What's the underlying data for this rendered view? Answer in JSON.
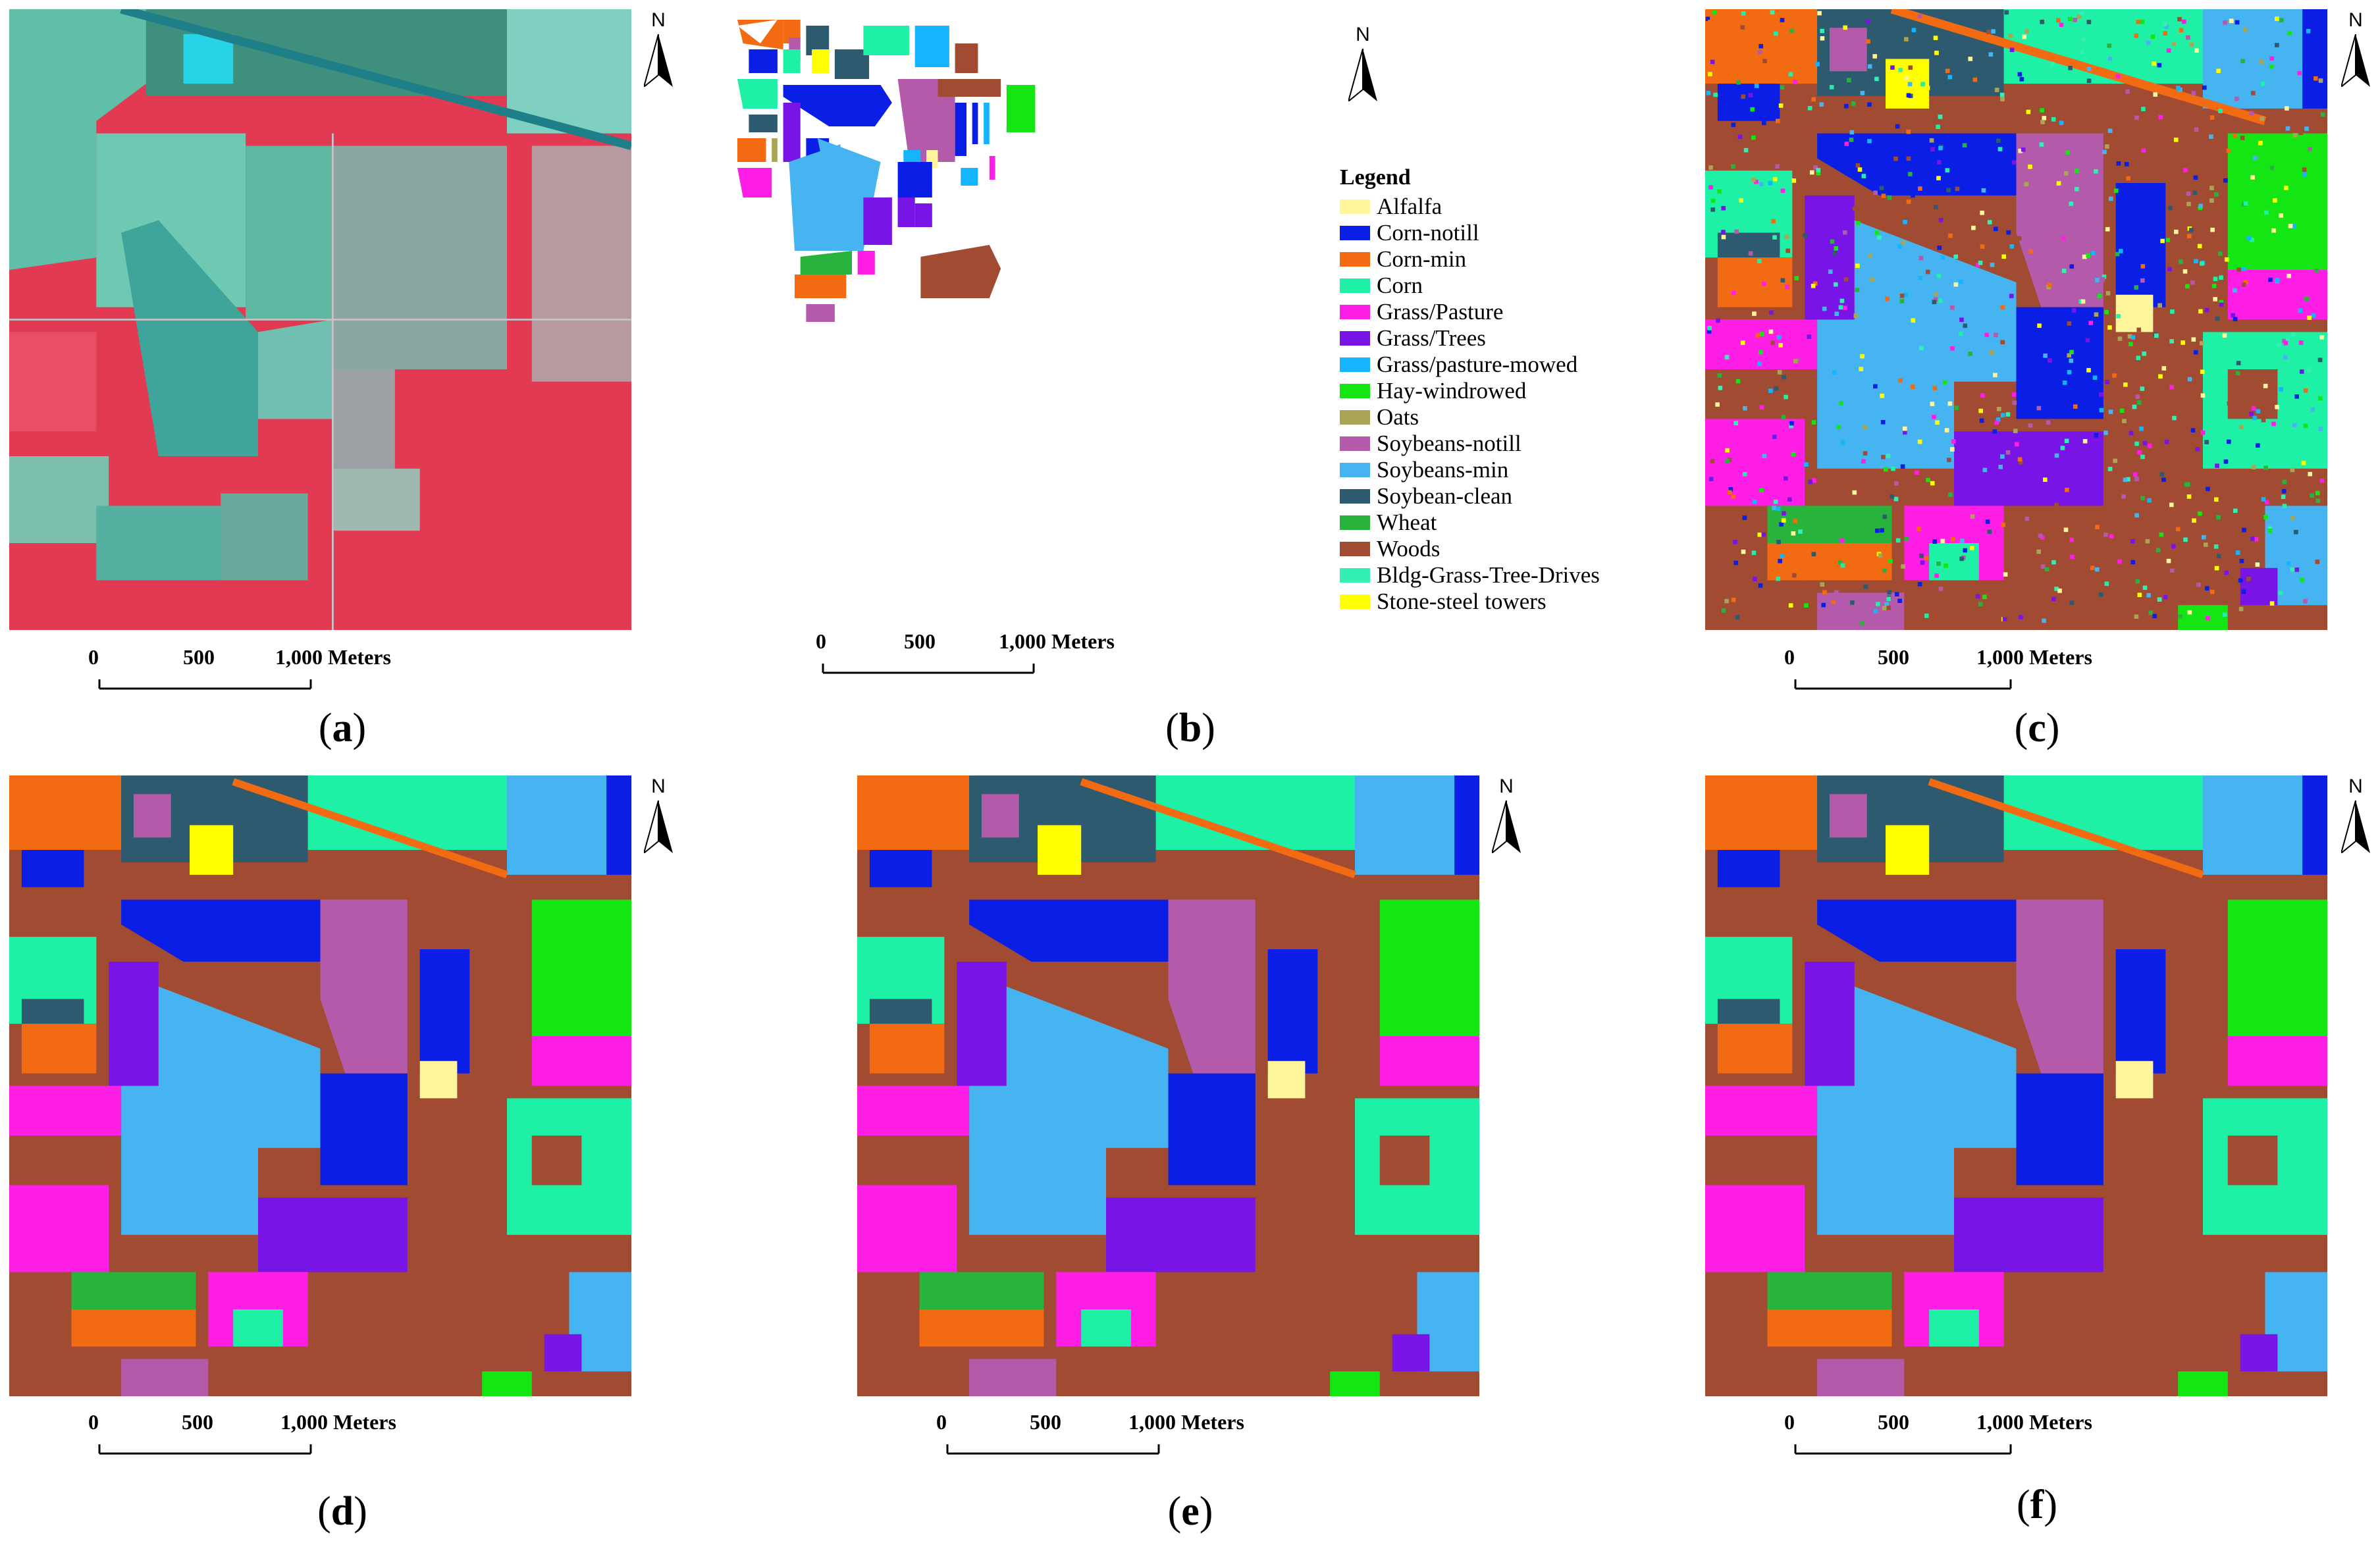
{
  "figure": {
    "legend": {
      "title": "Legend",
      "items": [
        {
          "label": "Alfalfa",
          "color": "#fff59a"
        },
        {
          "label": "Corn-notill",
          "color": "#0a1ee6"
        },
        {
          "label": "Corn-min",
          "color": "#f26a12"
        },
        {
          "label": "Corn",
          "color": "#1ef0a5"
        },
        {
          "label": "Grass/Pasture",
          "color": "#ff1ee6"
        },
        {
          "label": "Grass/Trees",
          "color": "#7814e6"
        },
        {
          "label": "Grass/pasture-mowed",
          "color": "#14b4ff"
        },
        {
          "label": "Hay-windrowed",
          "color": "#14e614"
        },
        {
          "label": "Oats",
          "color": "#aaa555"
        },
        {
          "label": "Soybeans-notill",
          "color": "#b45aaa"
        },
        {
          "label": "Soybeans-min",
          "color": "#46b4f0"
        },
        {
          "label": "Soybean-clean",
          "color": "#2d5a6e"
        },
        {
          "label": "Wheat",
          "color": "#28b43c"
        },
        {
          "label": "Woods",
          "color": "#a04b32"
        },
        {
          "label": "Bldg-Grass-Tree-Drives",
          "color": "#32f0b4"
        },
        {
          "label": "Stone-steel towers",
          "color": "#ffff00"
        }
      ]
    },
    "north_label": "N",
    "scale_labels": {
      "zero": "0",
      "mid": "500",
      "end": "1,000 Meters"
    },
    "panels": [
      {
        "id": "a",
        "caption_open": "(",
        "caption_letter": "a",
        "caption_close": ")",
        "kind": "false-color composite image"
      },
      {
        "id": "b",
        "caption_open": "(",
        "caption_letter": "b",
        "caption_close": ")",
        "kind": "ground truth map"
      },
      {
        "id": "c",
        "caption_open": "(",
        "caption_letter": "c",
        "caption_close": ")",
        "kind": "classification map"
      },
      {
        "id": "d",
        "caption_open": "(",
        "caption_letter": "d",
        "caption_close": ")",
        "kind": "classification map"
      },
      {
        "id": "e",
        "caption_open": "(",
        "caption_letter": "e",
        "caption_close": ")",
        "kind": "classification map"
      },
      {
        "id": "f",
        "caption_open": "(",
        "caption_letter": "f",
        "caption_close": ")",
        "kind": "classification map"
      }
    ]
  }
}
